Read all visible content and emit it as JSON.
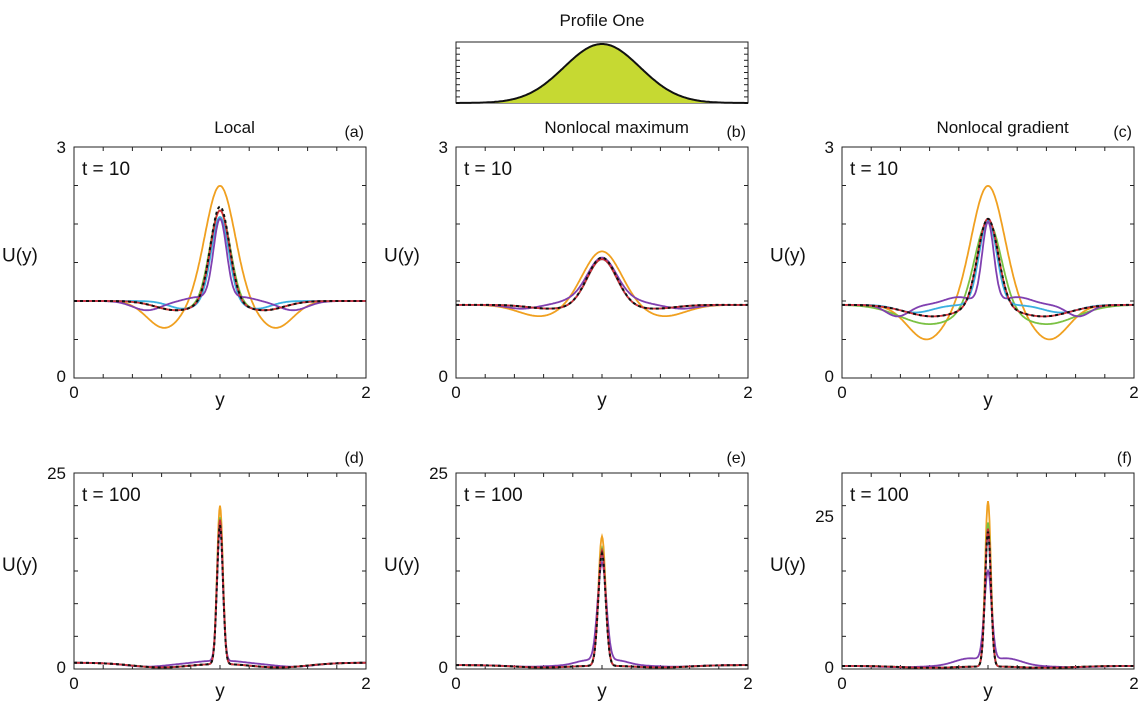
{
  "figure": {
    "inset_title": "Profile One",
    "colors": {
      "orange": "#f0a020",
      "green": "#7ac143",
      "cyan": "#3ab0e0",
      "purple": "#8040b0",
      "red": "#d0303a",
      "black": "#111111",
      "profile_fill": "#c6d932"
    }
  },
  "chart_data": [
    {
      "type": "line",
      "panel_label": "(a)",
      "title": "Local",
      "annotation": "t = 10",
      "xlabel": "y",
      "ylabel": "U(y)",
      "xlim": [
        0,
        2
      ],
      "ylim": [
        0,
        3
      ],
      "x_tick_labels": [
        "0",
        "2"
      ],
      "y_tick_labels": [
        "0",
        "3"
      ],
      "series_shape": [
        {
          "color": "orange",
          "base": 1.0,
          "peak": 2.5,
          "w": 0.1,
          "dip": 0.35,
          "dip_pos": 0.38,
          "dip_w": 0.12
        },
        {
          "color": "green",
          "base": 1.0,
          "peak": 2.2,
          "w": 0.07,
          "dip": 0.12,
          "dip_pos": 0.3,
          "dip_w": 0.14
        },
        {
          "color": "cyan",
          "base": 1.0,
          "peak": 2.1,
          "w": 0.06,
          "dip": 0.1,
          "dip_pos": 0.25,
          "dip_w": 0.1
        },
        {
          "color": "purple",
          "base": 1.0,
          "peak": 2.05,
          "w": 0.045,
          "dip": 0.12,
          "dip_pos": 0.5,
          "dip_w": 0.1,
          "bump": 0.05,
          "bump_pos": 0.15,
          "bump_w": 0.08
        },
        {
          "color": "red",
          "base": 1.0,
          "peak": 2.2,
          "w": 0.065,
          "dip": 0.12,
          "dip_pos": 0.3,
          "dip_w": 0.14
        },
        {
          "color": "black",
          "dashed": true,
          "base": 1.0,
          "peak": 2.25,
          "w": 0.065,
          "dip": 0.12,
          "dip_pos": 0.3,
          "dip_w": 0.14
        }
      ]
    },
    {
      "type": "line",
      "panel_label": "(b)",
      "title": "Nonlocal maximum",
      "annotation": "t = 10",
      "xlabel": "y",
      "ylabel": "U(y)",
      "xlim": [
        0,
        2
      ],
      "ylim": [
        0,
        3
      ],
      "x_tick_labels": [
        "0",
        "2"
      ],
      "y_tick_labels": [
        "0",
        "3"
      ],
      "series_shape": [
        {
          "color": "orange",
          "base": 0.95,
          "peak": 1.65,
          "w": 0.13,
          "dip": 0.15,
          "dip_pos": 0.42,
          "dip_w": 0.15
        },
        {
          "color": "green",
          "base": 0.95,
          "peak": 1.55,
          "w": 0.1,
          "dip": 0.05,
          "dip_pos": 0.35,
          "dip_w": 0.15
        },
        {
          "color": "cyan",
          "base": 0.95,
          "peak": 1.55,
          "w": 0.1,
          "dip": 0.05,
          "dip_pos": 0.35,
          "dip_w": 0.15
        },
        {
          "color": "purple",
          "base": 0.95,
          "peak": 1.55,
          "w": 0.1,
          "dip": 0.05,
          "dip_pos": 0.55,
          "dip_w": 0.1,
          "bump": 0.05,
          "bump_pos": 0.2,
          "bump_w": 0.1
        },
        {
          "color": "red",
          "base": 0.95,
          "peak": 1.55,
          "w": 0.1,
          "dip": 0.05,
          "dip_pos": 0.35,
          "dip_w": 0.15
        },
        {
          "color": "black",
          "dashed": true,
          "base": 0.95,
          "peak": 1.57,
          "w": 0.1,
          "dip": 0.05,
          "dip_pos": 0.35,
          "dip_w": 0.15
        }
      ]
    },
    {
      "type": "line",
      "panel_label": "(c)",
      "title": "Nonlocal gradient",
      "annotation": "t = 10",
      "xlabel": "y",
      "ylabel": "U(y)",
      "xlim": [
        0,
        2
      ],
      "ylim": [
        0,
        3
      ],
      "x_tick_labels": [
        "0",
        "2"
      ],
      "y_tick_labels": [
        "0",
        "3"
      ],
      "series_shape": [
        {
          "color": "orange",
          "base": 0.95,
          "peak": 2.5,
          "w": 0.11,
          "dip": 0.45,
          "dip_pos": 0.42,
          "dip_w": 0.13
        },
        {
          "color": "green",
          "base": 0.95,
          "peak": 2.1,
          "w": 0.09,
          "dip": 0.25,
          "dip_pos": 0.4,
          "dip_w": 0.2
        },
        {
          "color": "cyan",
          "base": 0.95,
          "peak": 2.05,
          "w": 0.06,
          "dip": 0.1,
          "dip_pos": 0.5,
          "dip_w": 0.12
        },
        {
          "color": "purple",
          "base": 0.95,
          "peak": 2.0,
          "w": 0.04,
          "dip": 0.15,
          "dip_pos": 0.62,
          "dip_w": 0.08,
          "bump": 0.1,
          "bump_pos": 0.2,
          "bump_w": 0.1
        },
        {
          "color": "red",
          "base": 0.95,
          "peak": 2.1,
          "w": 0.07,
          "dip": 0.15,
          "dip_pos": 0.38,
          "dip_w": 0.18
        },
        {
          "color": "black",
          "dashed": true,
          "base": 0.95,
          "peak": 2.1,
          "w": 0.07,
          "dip": 0.15,
          "dip_pos": 0.38,
          "dip_w": 0.18
        }
      ]
    },
    {
      "type": "line",
      "panel_label": "(d)",
      "title": "",
      "annotation": "t = 100",
      "xlabel": "y",
      "ylabel": "U(y)",
      "xlim": [
        0,
        2
      ],
      "ylim": [
        0,
        25
      ],
      "x_tick_labels": [
        "0",
        "2"
      ],
      "y_tick_labels": [
        "0",
        "25"
      ],
      "series_shape": [
        {
          "color": "orange",
          "base": 0.8,
          "peak": 21.0,
          "w": 0.02,
          "dip": 0.6,
          "dip_pos": 0.4,
          "dip_w": 0.2
        },
        {
          "color": "green",
          "base": 0.8,
          "peak": 19.5,
          "w": 0.02,
          "dip": 0.6,
          "dip_pos": 0.4,
          "dip_w": 0.2
        },
        {
          "color": "cyan",
          "base": 0.8,
          "peak": 18.5,
          "w": 0.02,
          "dip": 0.6,
          "dip_pos": 0.4,
          "dip_w": 0.2
        },
        {
          "color": "purple",
          "base": 0.8,
          "peak": 18.0,
          "w": 0.02,
          "dip": 0.5,
          "dip_pos": 0.5,
          "dip_w": 0.15,
          "bump": 0.2,
          "bump_pos": 0.08,
          "bump_w": 0.08
        },
        {
          "color": "red",
          "base": 0.8,
          "peak": 19.2,
          "w": 0.02,
          "dip": 0.6,
          "dip_pos": 0.4,
          "dip_w": 0.2
        },
        {
          "color": "black",
          "dashed": true,
          "base": 0.8,
          "peak": 18.5,
          "w": 0.02,
          "dip": 0.6,
          "dip_pos": 0.4,
          "dip_w": 0.2
        }
      ]
    },
    {
      "type": "line",
      "panel_label": "(e)",
      "title": "",
      "annotation": "t = 100",
      "xlabel": "y",
      "ylabel": "U(y)",
      "xlim": [
        0,
        2
      ],
      "ylim": [
        0,
        25
      ],
      "x_tick_labels": [
        "0",
        "2"
      ],
      "y_tick_labels": [
        "0",
        "25"
      ],
      "series_shape": [
        {
          "color": "orange",
          "base": 0.5,
          "peak": 17.0,
          "w": 0.025,
          "dip": 0.3,
          "dip_pos": 0.4,
          "dip_w": 0.2
        },
        {
          "color": "green",
          "base": 0.5,
          "peak": 15.5,
          "w": 0.025,
          "dip": 0.3,
          "dip_pos": 0.4,
          "dip_w": 0.2
        },
        {
          "color": "cyan",
          "base": 0.5,
          "peak": 14.8,
          "w": 0.025,
          "dip": 0.3,
          "dip_pos": 0.4,
          "dip_w": 0.2
        },
        {
          "color": "purple",
          "base": 0.5,
          "peak": 13.0,
          "w": 0.03,
          "dip": 0.2,
          "dip_pos": 0.5,
          "dip_w": 0.15,
          "bump": 0.6,
          "bump_pos": 0.1,
          "bump_w": 0.08
        },
        {
          "color": "red",
          "base": 0.5,
          "peak": 15.2,
          "w": 0.025,
          "dip": 0.3,
          "dip_pos": 0.4,
          "dip_w": 0.2
        },
        {
          "color": "black",
          "dashed": true,
          "base": 0.5,
          "peak": 14.8,
          "w": 0.025,
          "dip": 0.3,
          "dip_pos": 0.4,
          "dip_w": 0.2
        }
      ]
    },
    {
      "type": "line",
      "panel_label": "(f)",
      "title": "",
      "annotation": "t = 100",
      "xlabel": "y",
      "ylabel": "U(y)",
      "xlim": [
        0,
        2
      ],
      "ylim": [
        0,
        32
      ],
      "x_tick_labels": [
        "0",
        "2"
      ],
      "y_tick_labels": [
        "0",
        "25"
      ],
      "y_tick_values": [
        0,
        25
      ],
      "series_shape": [
        {
          "color": "orange",
          "base": 0.5,
          "peak": 27.5,
          "w": 0.02,
          "dip": 0.3,
          "dip_pos": 0.4,
          "dip_w": 0.2
        },
        {
          "color": "green",
          "base": 0.5,
          "peak": 24.0,
          "w": 0.02,
          "dip": 0.3,
          "dip_pos": 0.4,
          "dip_w": 0.2
        },
        {
          "color": "cyan",
          "base": 0.5,
          "peak": 22.0,
          "w": 0.02,
          "dip": 0.3,
          "dip_pos": 0.4,
          "dip_w": 0.2
        },
        {
          "color": "purple",
          "base": 0.5,
          "peak": 15.0,
          "w": 0.025,
          "dip": 0.2,
          "dip_pos": 0.6,
          "dip_w": 0.15,
          "bump": 1.2,
          "bump_pos": 0.13,
          "bump_w": 0.1
        },
        {
          "color": "red",
          "base": 0.5,
          "peak": 23.0,
          "w": 0.02,
          "dip": 0.3,
          "dip_pos": 0.4,
          "dip_w": 0.2
        },
        {
          "color": "black",
          "dashed": true,
          "base": 0.5,
          "peak": 22.5,
          "w": 0.02,
          "dip": 0.3,
          "dip_pos": 0.4,
          "dip_w": 0.2
        }
      ]
    }
  ]
}
